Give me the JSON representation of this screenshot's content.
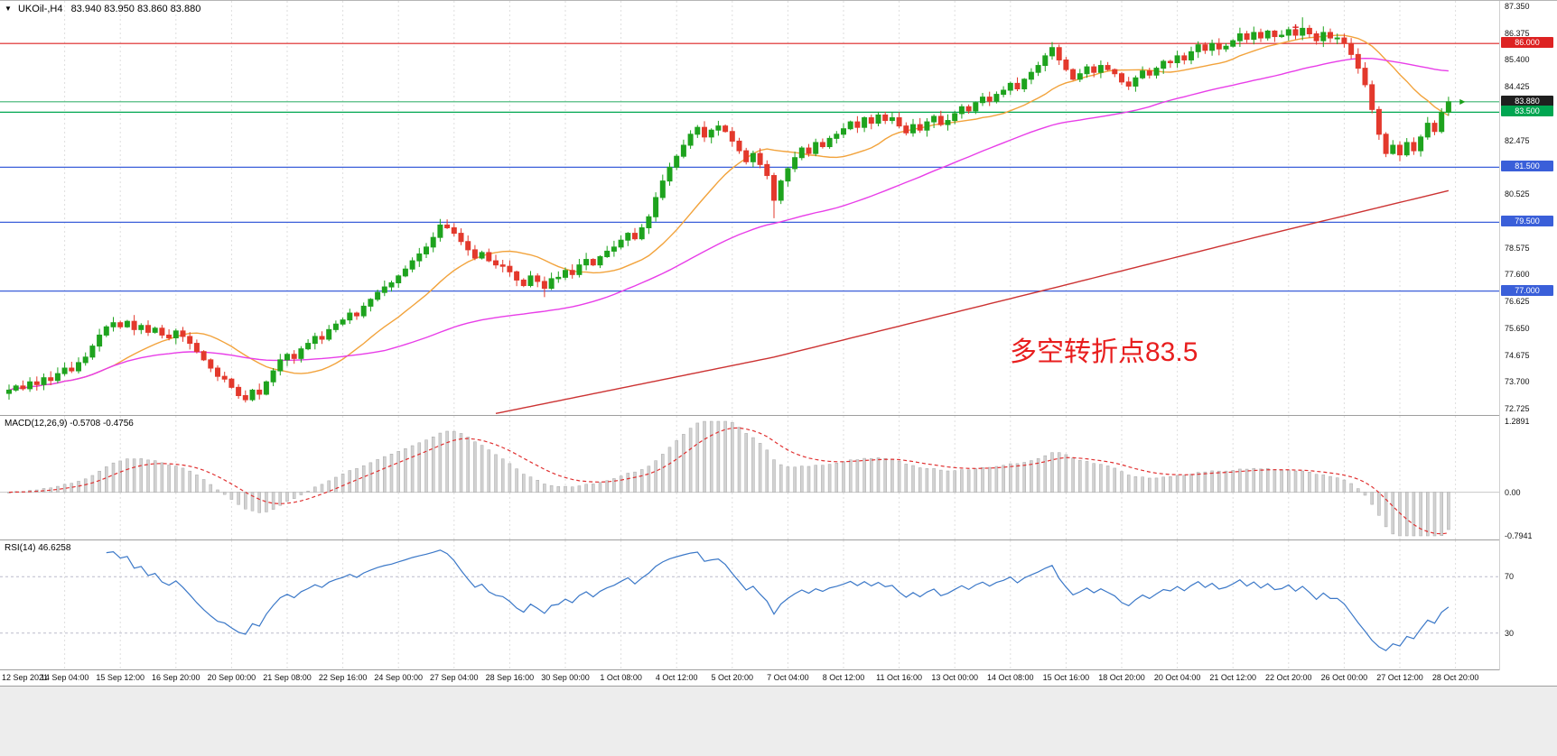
{
  "header": {
    "expander_icon": "▼",
    "title": "UKOil-,H4",
    "ohlc": "83.940 83.950 83.860 83.880"
  },
  "chart_data": [
    {
      "type": "candlestick",
      "title": "UKOil- H4",
      "up_color": "#1ea31e",
      "down_color": "#e3392c",
      "x_labels": [
        "12 Sep 2021",
        "14 Sep 04:00",
        "15 Sep 12:00",
        "16 Sep 20:00",
        "20 Sep 00:00",
        "21 Sep 08:00",
        "22 Sep 16:00",
        "24 Sep 00:00",
        "27 Sep 04:00",
        "28 Sep 16:00",
        "30 Sep 00:00",
        "1 Oct 08:00",
        "4 Oct 12:00",
        "5 Oct 20:00",
        "7 Oct 04:00",
        "8 Oct 12:00",
        "11 Oct 16:00",
        "13 Oct 00:00",
        "14 Oct 08:00",
        "15 Oct 16:00",
        "18 Oct 20:00",
        "20 Oct 04:00",
        "21 Oct 12:00",
        "22 Oct 20:00",
        "26 Oct 00:00",
        "27 Oct 12:00",
        "28 Oct 20:00"
      ],
      "open_rule": "open of each H4 candle equals previous close",
      "closes": [
        73.4,
        73.55,
        73.45,
        73.7,
        73.6,
        73.85,
        73.75,
        74.0,
        74.2,
        74.1,
        74.4,
        74.6,
        75.0,
        75.4,
        75.7,
        75.85,
        75.7,
        75.9,
        75.6,
        75.75,
        75.5,
        75.65,
        75.4,
        75.3,
        75.55,
        75.35,
        75.1,
        74.8,
        74.5,
        74.2,
        73.9,
        73.8,
        73.5,
        73.2,
        73.05,
        73.4,
        73.25,
        73.7,
        74.1,
        74.5,
        74.7,
        74.55,
        74.9,
        75.1,
        75.35,
        75.25,
        75.6,
        75.8,
        75.95,
        76.2,
        76.1,
        76.45,
        76.7,
        76.95,
        77.15,
        77.3,
        77.55,
        77.8,
        78.1,
        78.35,
        78.6,
        78.95,
        79.4,
        79.3,
        79.1,
        78.8,
        78.5,
        78.2,
        78.4,
        78.1,
        77.95,
        77.9,
        77.7,
        77.4,
        77.2,
        77.55,
        77.35,
        77.1,
        77.45,
        77.5,
        77.75,
        77.6,
        77.95,
        78.15,
        77.95,
        78.25,
        78.45,
        78.6,
        78.85,
        79.1,
        78.9,
        79.3,
        79.7,
        80.4,
        81.0,
        81.5,
        81.9,
        82.3,
        82.7,
        82.95,
        82.6,
        82.85,
        83.0,
        82.8,
        82.45,
        82.1,
        81.7,
        82.0,
        81.6,
        81.2,
        80.3,
        81.0,
        81.45,
        81.85,
        82.2,
        82.0,
        82.4,
        82.25,
        82.55,
        82.7,
        82.9,
        83.15,
        82.95,
        83.3,
        83.1,
        83.4,
        83.2,
        83.3,
        83.0,
        82.75,
        83.05,
        82.85,
        83.15,
        83.35,
        83.05,
        83.2,
        83.45,
        83.7,
        83.55,
        83.85,
        84.05,
        83.9,
        84.15,
        84.3,
        84.55,
        84.35,
        84.7,
        84.95,
        85.2,
        85.55,
        85.85,
        85.4,
        85.05,
        84.7,
        84.9,
        85.15,
        84.95,
        85.2,
        85.05,
        84.9,
        84.6,
        84.45,
        84.75,
        85.0,
        84.85,
        85.1,
        85.35,
        85.3,
        85.55,
        85.4,
        85.7,
        85.95,
        85.75,
        86.0,
        85.8,
        85.9,
        86.1,
        86.35,
        86.15,
        86.4,
        86.2,
        86.45,
        86.25,
        86.3,
        86.5,
        86.3,
        86.55,
        86.35,
        86.1,
        86.4,
        86.2,
        86.2,
        86.0,
        85.6,
        85.1,
        84.5,
        83.6,
        82.7,
        82.0,
        82.3,
        81.95,
        82.4,
        82.1,
        82.6,
        83.1,
        82.8,
        83.5,
        83.88
      ],
      "special_wicks": {
        "34": {
          "low": 72.95
        },
        "62": {
          "high": 79.62
        },
        "77": {
          "low": 76.78
        },
        "110": {
          "low": 79.65
        },
        "150": {
          "high": 86.05
        },
        "186": {
          "high": 86.95
        }
      },
      "y_axis": {
        "min": 72.725,
        "max": 87.35,
        "tick_step": 0.975,
        "ticks": [
          "87.350",
          "86.375",
          "85.400",
          "84.425",
          "83.450",
          "82.475",
          "81.500",
          "80.525",
          "79.550",
          "78.575",
          "77.600",
          "76.625",
          "75.650",
          "74.675",
          "73.700",
          "72.725"
        ]
      },
      "levels": [
        {
          "price": 86.0,
          "label": "86.000",
          "color": "#dd2222",
          "style": "solid"
        },
        {
          "price": 83.88,
          "label": "83.880",
          "color": "#3cb371",
          "tag_bg": "#1f1f1f",
          "style": "solid",
          "role": "current-price"
        },
        {
          "price": 83.5,
          "label": "83.500",
          "color": "#00a651",
          "style": "solid"
        },
        {
          "price": 81.5,
          "label": "81.500",
          "color": "#3a5fd9",
          "style": "solid"
        },
        {
          "price": 79.5,
          "label": "79.500",
          "color": "#3a5fd9",
          "style": "solid"
        },
        {
          "price": 77.0,
          "label": "77.000",
          "color": "#3a5fd9",
          "style": "solid"
        }
      ],
      "moving_averages": [
        {
          "name": "ma-fast-orange",
          "color": "#f2a33c",
          "period": 16
        },
        {
          "name": "ma-mid-magenta",
          "color": "#e83ee8",
          "period": 55
        },
        {
          "name": "ma-long-red",
          "color": "#cc3333",
          "anchors": [
            [
              70,
              72.55
            ],
            [
              110,
              74.6
            ],
            [
              150,
              77.1
            ],
            [
              180,
              79.0
            ],
            [
              207,
              80.65
            ]
          ]
        }
      ],
      "annotation": {
        "text": "多空转折点83.5",
        "color": "#e81e1e"
      },
      "markers": [
        {
          "index": 185,
          "price": 86.55,
          "glyph": "+",
          "color": "#dd2222",
          "name": "cross-marker"
        },
        {
          "index": 209,
          "price": 83.9,
          "glyph": "▶",
          "color": "#18a018",
          "name": "price-arrow-marker"
        }
      ]
    },
    {
      "type": "macd-histogram",
      "label": "MACD(12,26,9) -0.5708 -0.4756",
      "fast": 12,
      "slow": 26,
      "signal": 9,
      "macd_value": -0.5708,
      "signal_value": -0.4756,
      "y_ticks": [
        "1.2891",
        "0.00",
        "-0.7941"
      ],
      "y_max": 1.2891,
      "y_min": -0.7941,
      "histogram_color": "#d2d2d2",
      "histogram_border": "#a8a8a8",
      "signal_color": "#e03030",
      "zero_line_color": "#c8c8c8"
    },
    {
      "type": "rsi",
      "label": "RSI(14) 46.6258",
      "period": 14,
      "value": 46.6258,
      "levels": [
        70,
        30
      ],
      "y_ticks": [
        "70",
        "30"
      ],
      "line_color": "#3b78c8",
      "level_color": "#bcbccb"
    }
  ]
}
